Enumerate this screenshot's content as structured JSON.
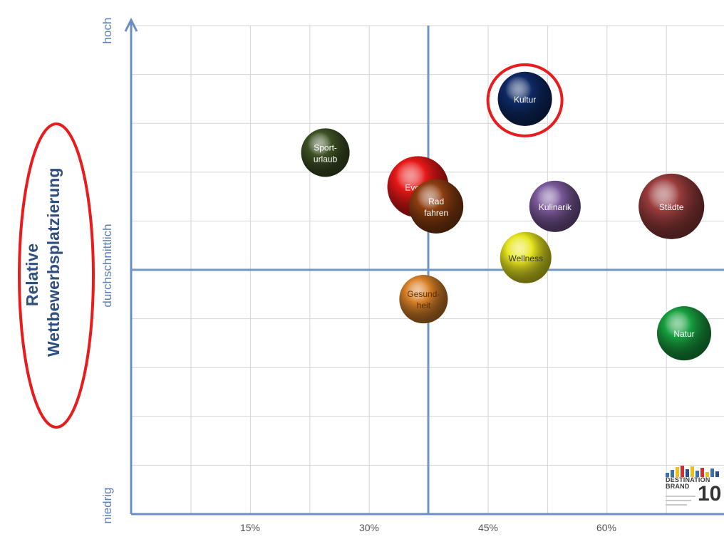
{
  "chart_data": {
    "type": "bubble",
    "title": "",
    "xlabel": "",
    "ylabel": "Relative Wettbewerbsplatzierung",
    "x_ticks": [
      "15%",
      "30%",
      "45%",
      "60%"
    ],
    "y_levels": {
      "high": "hoch",
      "mid": "durchschnittlich",
      "low": "niedrig"
    },
    "points": [
      {
        "label": "Kultur",
        "x": 49.7,
        "y": 85,
        "color": "#0e2a66",
        "text_color": "#ffffff",
        "highlight": true
      },
      {
        "label": "Sport-\nurlaub",
        "x": 24.5,
        "y": 74,
        "color": "#3e5225",
        "text_color": "#ffffff"
      },
      {
        "label": "Events",
        "x": 36.2,
        "y": 67,
        "color": "#e81818",
        "text_color": "#ffffff"
      },
      {
        "label": "Rad\nfahren",
        "x": 38.5,
        "y": 63,
        "color": "#8e3f10",
        "text_color": "#ffffff"
      },
      {
        "label": "Kulinarik",
        "x": 53.5,
        "y": 63,
        "color": "#7c5a9c",
        "text_color": "#ffffff"
      },
      {
        "label": "Städte",
        "x": 68.2,
        "y": 63,
        "color": "#9a3c3c",
        "text_color": "#ffffff"
      },
      {
        "label": "Wellness",
        "x": 49.8,
        "y": 52.5,
        "color": "#e8e620",
        "text_color": "#333333"
      },
      {
        "label": "Gesund-\nheit",
        "x": 36.9,
        "y": 44,
        "color": "#d88028",
        "text_color": "#5a3000"
      },
      {
        "label": "Natur",
        "x": 69.8,
        "y": 37,
        "color": "#18a040",
        "text_color": "#ffffff"
      }
    ]
  },
  "logo": {
    "text_top": "DESTINATION",
    "text_bottom": "BRAND",
    "number": "10"
  }
}
